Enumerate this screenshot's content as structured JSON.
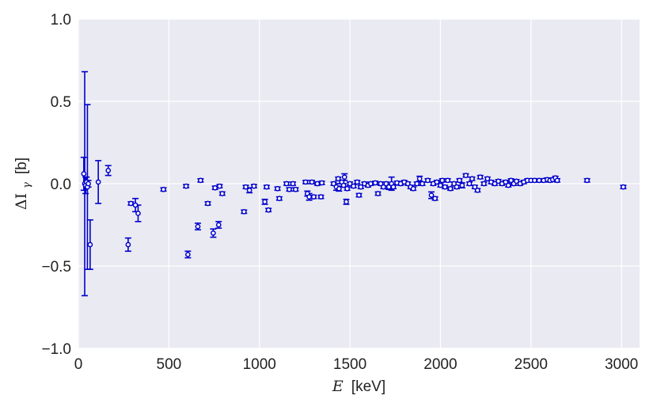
{
  "chart_data": {
    "type": "scatter",
    "title": "",
    "xlabel": "E [keV]",
    "ylabel": "ΔI_γ [b]",
    "xlabel_parts": {
      "var": "E",
      "unit": "[keV]"
    },
    "ylabel_parts": {
      "var": "ΔI",
      "sub": "γ",
      "unit": "[b]"
    },
    "xlim": [
      0,
      3100
    ],
    "ylim": [
      -1.0,
      1.0
    ],
    "x_ticks": [
      0,
      500,
      1000,
      1500,
      2000,
      2500,
      3000
    ],
    "x_tick_labels": [
      "0",
      "500",
      "1000",
      "1500",
      "2000",
      "2500",
      "3000"
    ],
    "y_ticks": [
      -1.0,
      -0.5,
      0.0,
      0.5,
      1.0
    ],
    "y_tick_labels": [
      "−1.0",
      "−0.5",
      "0.0",
      "0.5",
      "1.0"
    ],
    "grid": true,
    "marker_color": "#0000cc",
    "background_color": "#eaeaf2",
    "points": [
      {
        "x": 30,
        "y": 0.06,
        "err": 0.1
      },
      {
        "x": 35,
        "y": 0.0,
        "err": 0.68
      },
      {
        "x": 40,
        "y": -0.01,
        "err": 0.05
      },
      {
        "x": 45,
        "y": 0.01,
        "err": 0.03
      },
      {
        "x": 50,
        "y": -0.02,
        "err": 0.5
      },
      {
        "x": 55,
        "y": 0.0,
        "err": 0.02
      },
      {
        "x": 65,
        "y": -0.37,
        "err": 0.15
      },
      {
        "x": 110,
        "y": 0.01,
        "err": 0.13
      },
      {
        "x": 165,
        "y": 0.08,
        "err": 0.03
      },
      {
        "x": 275,
        "y": -0.37,
        "err": 0.04
      },
      {
        "x": 290,
        "y": -0.12,
        "err": 0.01
      },
      {
        "x": 315,
        "y": -0.13,
        "err": 0.04
      },
      {
        "x": 330,
        "y": -0.18,
        "err": 0.05
      },
      {
        "x": 470,
        "y": -0.035,
        "err": 0.01
      },
      {
        "x": 595,
        "y": -0.015,
        "err": 0.01
      },
      {
        "x": 605,
        "y": -0.43,
        "err": 0.02
      },
      {
        "x": 660,
        "y": -0.26,
        "err": 0.02
      },
      {
        "x": 675,
        "y": 0.02,
        "err": 0.01
      },
      {
        "x": 715,
        "y": -0.12,
        "err": 0.01
      },
      {
        "x": 745,
        "y": -0.3,
        "err": 0.025
      },
      {
        "x": 755,
        "y": -0.025,
        "err": 0.01
      },
      {
        "x": 775,
        "y": -0.25,
        "err": 0.02
      },
      {
        "x": 780,
        "y": -0.015,
        "err": 0.01
      },
      {
        "x": 795,
        "y": -0.06,
        "err": 0.01
      },
      {
        "x": 915,
        "y": -0.17,
        "err": 0.01
      },
      {
        "x": 925,
        "y": -0.02,
        "err": 0.01
      },
      {
        "x": 945,
        "y": -0.04,
        "err": 0.015
      },
      {
        "x": 970,
        "y": -0.015,
        "err": 0.01
      },
      {
        "x": 1030,
        "y": -0.11,
        "err": 0.015
      },
      {
        "x": 1040,
        "y": -0.02,
        "err": 0.01
      },
      {
        "x": 1050,
        "y": -0.16,
        "err": 0.01
      },
      {
        "x": 1100,
        "y": -0.03,
        "err": 0.01
      },
      {
        "x": 1110,
        "y": -0.09,
        "err": 0.01
      },
      {
        "x": 1150,
        "y": 0.0,
        "err": 0.01
      },
      {
        "x": 1165,
        "y": -0.035,
        "err": 0.01
      },
      {
        "x": 1185,
        "y": 0.0,
        "err": 0.01
      },
      {
        "x": 1200,
        "y": -0.035,
        "err": 0.01
      },
      {
        "x": 1255,
        "y": 0.01,
        "err": 0.01
      },
      {
        "x": 1265,
        "y": -0.06,
        "err": 0.015
      },
      {
        "x": 1275,
        "y": -0.08,
        "err": 0.02
      },
      {
        "x": 1290,
        "y": 0.01,
        "err": 0.01
      },
      {
        "x": 1300,
        "y": -0.08,
        "err": 0.01
      },
      {
        "x": 1320,
        "y": 0.0,
        "err": 0.01
      },
      {
        "x": 1340,
        "y": -0.08,
        "err": 0.01
      },
      {
        "x": 1345,
        "y": 0.005,
        "err": 0.01
      },
      {
        "x": 1410,
        "y": 0.0,
        "err": 0.01
      },
      {
        "x": 1425,
        "y": -0.02,
        "err": 0.02
      },
      {
        "x": 1435,
        "y": 0.03,
        "err": 0.01
      },
      {
        "x": 1440,
        "y": -0.03,
        "err": 0.015
      },
      {
        "x": 1455,
        "y": 0.01,
        "err": 0.01
      },
      {
        "x": 1465,
        "y": -0.01,
        "err": 0.01
      },
      {
        "x": 1470,
        "y": 0.04,
        "err": 0.02
      },
      {
        "x": 1480,
        "y": -0.11,
        "err": 0.015
      },
      {
        "x": 1485,
        "y": -0.03,
        "err": 0.01
      },
      {
        "x": 1500,
        "y": 0.0,
        "err": 0.01
      },
      {
        "x": 1520,
        "y": -0.015,
        "err": 0.01
      },
      {
        "x": 1540,
        "y": 0.01,
        "err": 0.01
      },
      {
        "x": 1550,
        "y": -0.07,
        "err": 0.01
      },
      {
        "x": 1560,
        "y": -0.02,
        "err": 0.01
      },
      {
        "x": 1580,
        "y": 0.0,
        "err": 0.01
      },
      {
        "x": 1600,
        "y": -0.01,
        "err": 0.01
      },
      {
        "x": 1615,
        "y": 0.0,
        "err": 0.01
      },
      {
        "x": 1640,
        "y": 0.005,
        "err": 0.01
      },
      {
        "x": 1655,
        "y": -0.06,
        "err": 0.01
      },
      {
        "x": 1670,
        "y": 0.0,
        "err": 0.01
      },
      {
        "x": 1685,
        "y": -0.02,
        "err": 0.01
      },
      {
        "x": 1700,
        "y": 0.0,
        "err": 0.01
      },
      {
        "x": 1715,
        "y": -0.02,
        "err": 0.015
      },
      {
        "x": 1730,
        "y": 0.0,
        "err": 0.04
      },
      {
        "x": 1740,
        "y": -0.02,
        "err": 0.01
      },
      {
        "x": 1760,
        "y": 0.005,
        "err": 0.01
      },
      {
        "x": 1780,
        "y": 0.0,
        "err": 0.01
      },
      {
        "x": 1800,
        "y": 0.01,
        "err": 0.01
      },
      {
        "x": 1820,
        "y": 0.0,
        "err": 0.01
      },
      {
        "x": 1835,
        "y": -0.02,
        "err": 0.01
      },
      {
        "x": 1850,
        "y": -0.03,
        "err": 0.01
      },
      {
        "x": 1870,
        "y": 0.0,
        "err": 0.01
      },
      {
        "x": 1885,
        "y": 0.03,
        "err": 0.015
      },
      {
        "x": 1900,
        "y": 0.0,
        "err": 0.01
      },
      {
        "x": 1930,
        "y": 0.02,
        "err": 0.01
      },
      {
        "x": 1950,
        "y": -0.07,
        "err": 0.02
      },
      {
        "x": 1960,
        "y": 0.0,
        "err": 0.01
      },
      {
        "x": 1970,
        "y": -0.09,
        "err": 0.01
      },
      {
        "x": 1980,
        "y": 0.01,
        "err": 0.01
      },
      {
        "x": 2000,
        "y": -0.01,
        "err": 0.01
      },
      {
        "x": 2010,
        "y": 0.02,
        "err": 0.01
      },
      {
        "x": 2025,
        "y": -0.02,
        "err": 0.01
      },
      {
        "x": 2040,
        "y": 0.02,
        "err": 0.01
      },
      {
        "x": 2055,
        "y": -0.03,
        "err": 0.01
      },
      {
        "x": 2075,
        "y": 0.0,
        "err": 0.01
      },
      {
        "x": 2090,
        "y": -0.02,
        "err": 0.01
      },
      {
        "x": 2105,
        "y": 0.02,
        "err": 0.01
      },
      {
        "x": 2120,
        "y": -0.01,
        "err": 0.015
      },
      {
        "x": 2140,
        "y": 0.05,
        "err": 0.01
      },
      {
        "x": 2160,
        "y": 0.0,
        "err": 0.01
      },
      {
        "x": 2175,
        "y": 0.03,
        "err": 0.01
      },
      {
        "x": 2190,
        "y": -0.02,
        "err": 0.01
      },
      {
        "x": 2205,
        "y": -0.04,
        "err": 0.01
      },
      {
        "x": 2220,
        "y": 0.04,
        "err": 0.01
      },
      {
        "x": 2240,
        "y": 0.0,
        "err": 0.01
      },
      {
        "x": 2260,
        "y": 0.03,
        "err": 0.01
      },
      {
        "x": 2280,
        "y": 0.01,
        "err": 0.01
      },
      {
        "x": 2300,
        "y": 0.0,
        "err": 0.01
      },
      {
        "x": 2320,
        "y": 0.015,
        "err": 0.01
      },
      {
        "x": 2340,
        "y": 0.0,
        "err": 0.01
      },
      {
        "x": 2360,
        "y": 0.01,
        "err": 0.01
      },
      {
        "x": 2375,
        "y": -0.01,
        "err": 0.01
      },
      {
        "x": 2390,
        "y": 0.02,
        "err": 0.01
      },
      {
        "x": 2405,
        "y": 0.0,
        "err": 0.01
      },
      {
        "x": 2420,
        "y": 0.015,
        "err": 0.01
      },
      {
        "x": 2440,
        "y": 0.0,
        "err": 0.01
      },
      {
        "x": 2460,
        "y": 0.01,
        "err": 0.01
      },
      {
        "x": 2480,
        "y": 0.02,
        "err": 0.01
      },
      {
        "x": 2500,
        "y": 0.02,
        "err": 0.01
      },
      {
        "x": 2520,
        "y": 0.02,
        "err": 0.01
      },
      {
        "x": 2545,
        "y": 0.02,
        "err": 0.01
      },
      {
        "x": 2570,
        "y": 0.02,
        "err": 0.01
      },
      {
        "x": 2590,
        "y": 0.025,
        "err": 0.01
      },
      {
        "x": 2605,
        "y": 0.02,
        "err": 0.01
      },
      {
        "x": 2620,
        "y": 0.025,
        "err": 0.01
      },
      {
        "x": 2635,
        "y": 0.035,
        "err": 0.01
      },
      {
        "x": 2645,
        "y": 0.02,
        "err": 0.01
      },
      {
        "x": 2810,
        "y": 0.02,
        "err": 0.01
      },
      {
        "x": 3010,
        "y": -0.02,
        "err": 0.01
      }
    ]
  }
}
